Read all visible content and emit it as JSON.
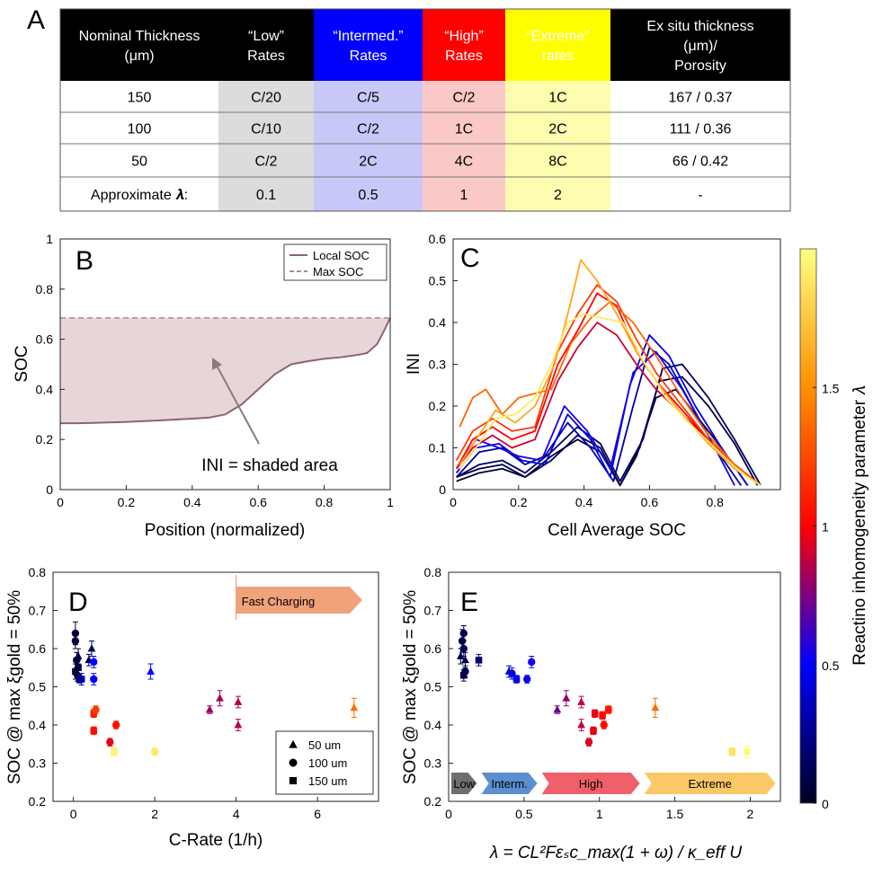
{
  "panel_A": {
    "letter": "A",
    "columns": [
      {
        "lines": [
          "Nominal Thickness",
          "(μm)"
        ],
        "bg": "#000000",
        "fg": "#ffffff",
        "cell_bg": "#ffffff"
      },
      {
        "lines": [
          "“Low”",
          "Rates"
        ],
        "bg": "#000000",
        "fg": "#ffffff",
        "cell_bg": "#dcdcdc"
      },
      {
        "lines": [
          "“Intermed.”",
          "Rates"
        ],
        "bg": "#0000ff",
        "fg": "#ffffff",
        "cell_bg": "#c8c8f8"
      },
      {
        "lines": [
          "“High”",
          "Rates"
        ],
        "bg": "#ff0000",
        "fg": "#ffffff",
        "cell_bg": "#fbc8c8"
      },
      {
        "lines": [
          "“Extreme”",
          "rates"
        ],
        "bg": "#ffff00",
        "fg": "#000000",
        "cell_bg": "#fdfdb0"
      },
      {
        "lines": [
          "Ex situ thickness",
          "(μm)/",
          "Porosity"
        ],
        "bg": "#000000",
        "fg": "#ffffff",
        "cell_bg": "#ffffff"
      }
    ],
    "rows": [
      [
        "150",
        "C/20",
        "C/5",
        "C/2",
        "1C",
        "167   /  0.37"
      ],
      [
        "100",
        "C/10",
        "C/2",
        "1C",
        "2C",
        "111   /  0.36"
      ],
      [
        "50",
        "C/2",
        "2C",
        "4C",
        "8C",
        "66    /  0.42"
      ],
      [
        "Approximate 𝝀:",
        "0.1",
        "0.5",
        "1",
        "2",
        "-"
      ]
    ]
  },
  "chart_data": [
    {
      "panel": "B",
      "type": "area",
      "xlabel": "Position (normalized)",
      "ylabel": "SOC",
      "xlim": [
        0,
        1
      ],
      "ylim": [
        0,
        1
      ],
      "xticks": [
        "0",
        "0.2",
        "0.4",
        "0.6",
        "0.8",
        "1"
      ],
      "yticks": [
        "0",
        "0.2",
        "0.4",
        "0.6",
        "0.8",
        "1"
      ],
      "series": [
        {
          "name": "Local SOC",
          "color": "#8c6470",
          "x": [
            0,
            0.05,
            0.1,
            0.2,
            0.3,
            0.4,
            0.45,
            0.5,
            0.55,
            0.6,
            0.65,
            0.7,
            0.75,
            0.8,
            0.85,
            0.9,
            0.93,
            0.96,
            0.98,
            1.0
          ],
          "y": [
            0.265,
            0.265,
            0.266,
            0.27,
            0.276,
            0.283,
            0.287,
            0.3,
            0.34,
            0.4,
            0.46,
            0.5,
            0.512,
            0.522,
            0.528,
            0.537,
            0.545,
            0.58,
            0.63,
            0.685
          ]
        },
        {
          "name": "Max SOC",
          "color": "#b08a94",
          "dashed": true,
          "y_const": 0.685
        }
      ],
      "legend": "top-right",
      "annotation": "INI = shaded area"
    },
    {
      "panel": "C",
      "type": "line",
      "xlabel": "Cell Average SOC",
      "ylabel": "INI",
      "xlim": [
        0,
        1
      ],
      "ylim": [
        0,
        0.6
      ],
      "xticks": [
        "0",
        "0.2",
        "0.4",
        "0.6",
        "0.8"
      ],
      "yticks": [
        "0",
        "0.1",
        "0.2",
        "0.3",
        "0.4",
        "0.5",
        "0.6"
      ],
      "colorbar": {
        "label": "Reactino inhomogeneity parameter 𝜆",
        "range": [
          0,
          2
        ],
        "ticks": [
          "0",
          "0.5",
          "1",
          "1.5"
        ],
        "stops": [
          "#000020",
          "#0000ff",
          "#ff0000",
          "#ff9000",
          "#ffff80"
        ]
      },
      "series": [
        {
          "lambda": 0.05,
          "x": [
            0.01,
            0.08,
            0.15,
            0.22,
            0.3,
            0.38,
            0.45,
            0.51,
            0.56,
            0.62,
            0.68,
            0.75,
            0.82,
            0.9
          ],
          "y": [
            0.02,
            0.04,
            0.05,
            0.03,
            0.08,
            0.12,
            0.09,
            0.01,
            0.08,
            0.22,
            0.24,
            0.17,
            0.1,
            0.01
          ]
        },
        {
          "lambda": 0.1,
          "x": [
            0.01,
            0.08,
            0.15,
            0.22,
            0.3,
            0.38,
            0.45,
            0.51,
            0.57,
            0.63,
            0.7,
            0.78,
            0.86,
            0.93
          ],
          "y": [
            0.03,
            0.05,
            0.06,
            0.03,
            0.07,
            0.13,
            0.1,
            0.01,
            0.1,
            0.26,
            0.27,
            0.2,
            0.11,
            0.01
          ]
        },
        {
          "lambda": 0.15,
          "x": [
            0.01,
            0.08,
            0.15,
            0.22,
            0.3,
            0.38,
            0.45,
            0.51,
            0.58,
            0.64,
            0.7,
            0.78,
            0.86,
            0.94
          ],
          "y": [
            0.03,
            0.06,
            0.07,
            0.04,
            0.09,
            0.15,
            0.11,
            0.02,
            0.12,
            0.29,
            0.3,
            0.22,
            0.12,
            0.01
          ]
        },
        {
          "lambda": 0.3,
          "x": [
            0.01,
            0.08,
            0.15,
            0.22,
            0.28,
            0.35,
            0.42,
            0.49,
            0.55,
            0.6,
            0.66,
            0.73,
            0.8,
            0.88
          ],
          "y": [
            0.03,
            0.09,
            0.1,
            0.06,
            0.08,
            0.16,
            0.1,
            0.02,
            0.2,
            0.34,
            0.3,
            0.2,
            0.1,
            0.01
          ]
        },
        {
          "lambda": 0.45,
          "x": [
            0.01,
            0.07,
            0.14,
            0.21,
            0.28,
            0.35,
            0.42,
            0.48,
            0.54,
            0.6,
            0.66,
            0.74,
            0.82,
            0.9
          ],
          "y": [
            0.04,
            0.1,
            0.11,
            0.07,
            0.06,
            0.18,
            0.12,
            0.03,
            0.25,
            0.37,
            0.32,
            0.2,
            0.1,
            0.01
          ]
        },
        {
          "lambda": 0.55,
          "x": [
            0.01,
            0.07,
            0.14,
            0.2,
            0.27,
            0.34,
            0.41,
            0.48,
            0.55,
            0.62,
            0.7,
            0.78,
            0.86
          ],
          "y": [
            0.05,
            0.12,
            0.1,
            0.08,
            0.07,
            0.2,
            0.14,
            0.05,
            0.28,
            0.33,
            0.24,
            0.13,
            0.01
          ]
        },
        {
          "lambda": 0.9,
          "x": [
            0.01,
            0.06,
            0.12,
            0.18,
            0.25,
            0.32,
            0.38,
            0.44,
            0.5,
            0.56,
            0.62,
            0.7,
            0.78,
            0.86,
            0.94
          ],
          "y": [
            0.05,
            0.1,
            0.13,
            0.1,
            0.12,
            0.26,
            0.34,
            0.4,
            0.37,
            0.3,
            0.24,
            0.18,
            0.12,
            0.06,
            0.01
          ]
        },
        {
          "lambda": 1.0,
          "x": [
            0.01,
            0.06,
            0.12,
            0.18,
            0.25,
            0.32,
            0.38,
            0.44,
            0.5,
            0.56,
            0.62,
            0.7,
            0.78,
            0.86,
            0.94
          ],
          "y": [
            0.05,
            0.12,
            0.15,
            0.12,
            0.14,
            0.3,
            0.38,
            0.47,
            0.44,
            0.33,
            0.26,
            0.19,
            0.12,
            0.06,
            0.01
          ]
        },
        {
          "lambda": 1.2,
          "x": [
            0.01,
            0.06,
            0.12,
            0.18,
            0.25,
            0.32,
            0.38,
            0.44,
            0.5,
            0.56,
            0.62,
            0.7,
            0.78,
            0.86,
            0.94
          ],
          "y": [
            0.07,
            0.14,
            0.17,
            0.14,
            0.15,
            0.33,
            0.42,
            0.49,
            0.45,
            0.36,
            0.28,
            0.2,
            0.12,
            0.06,
            0.01
          ]
        },
        {
          "lambda": 1.35,
          "x": [
            0.02,
            0.06,
            0.1,
            0.15,
            0.2,
            0.25,
            0.3,
            0.36,
            0.42,
            0.48,
            0.55,
            0.62,
            0.7,
            0.78,
            0.86,
            0.94
          ],
          "y": [
            0.15,
            0.22,
            0.24,
            0.18,
            0.22,
            0.23,
            0.24,
            0.35,
            0.41,
            0.45,
            0.4,
            0.32,
            0.22,
            0.13,
            0.06,
            0.01
          ]
        },
        {
          "lambda": 1.6,
          "x": [
            0.02,
            0.07,
            0.13,
            0.19,
            0.25,
            0.31,
            0.36,
            0.39,
            0.44,
            0.5,
            0.56,
            0.63,
            0.7,
            0.78,
            0.86,
            0.94
          ],
          "y": [
            0.06,
            0.12,
            0.19,
            0.16,
            0.2,
            0.3,
            0.45,
            0.55,
            0.5,
            0.42,
            0.33,
            0.25,
            0.18,
            0.11,
            0.05,
            0.01
          ]
        },
        {
          "lambda": 1.9,
          "x": [
            0.02,
            0.07,
            0.13,
            0.19,
            0.25,
            0.3,
            0.35,
            0.4,
            0.46,
            0.52,
            0.58,
            0.65,
            0.72,
            0.8,
            0.88,
            0.94
          ],
          "y": [
            0.05,
            0.1,
            0.17,
            0.18,
            0.22,
            0.3,
            0.4,
            0.42,
            0.41,
            0.4,
            0.31,
            0.22,
            0.16,
            0.1,
            0.04,
            0.01
          ]
        }
      ]
    },
    {
      "panel": "D",
      "type": "scatter",
      "xlabel": "C-Rate (1/h)",
      "ylabel": "SOC @ max ξgold = 50%",
      "xlim": [
        -0.5,
        7.5
      ],
      "ylim": [
        0.2,
        0.8
      ],
      "xticks": [
        "0",
        "2",
        "4",
        "6"
      ],
      "yticks": [
        "0.2",
        "0.3",
        "0.4",
        "0.5",
        "0.6",
        "0.7",
        "0.8"
      ],
      "annotation": "Fast Charging",
      "legend": "bottom-right",
      "legend_entries": [
        "50 um",
        "100 um",
        "150 um"
      ],
      "points": [
        {
          "x": 0.05,
          "y": 0.64,
          "e": 0.03,
          "m": "o",
          "lambda": 0.05
        },
        {
          "x": 0.05,
          "y": 0.62,
          "e": 0.02,
          "m": "o",
          "lambda": 0.05
        },
        {
          "x": 0.08,
          "y": 0.57,
          "e": 0.02,
          "m": "o",
          "lambda": 0.05
        },
        {
          "x": 0.1,
          "y": 0.53,
          "e": 0.015,
          "m": "o",
          "lambda": 0.08
        },
        {
          "x": 0.12,
          "y": 0.55,
          "e": 0.02,
          "m": "s",
          "lambda": 0.08
        },
        {
          "x": 0.05,
          "y": 0.54,
          "e": 0.02,
          "m": "s",
          "lambda": 0.05
        },
        {
          "x": 0.15,
          "y": 0.52,
          "e": 0.01,
          "m": "s",
          "lambda": 0.1
        },
        {
          "x": 0.12,
          "y": 0.58,
          "e": 0.02,
          "m": "^",
          "lambda": 0.08
        },
        {
          "x": 0.38,
          "y": 0.57,
          "e": 0.015,
          "m": "^",
          "lambda": 0.1
        },
        {
          "x": 0.45,
          "y": 0.6,
          "e": 0.02,
          "m": "^",
          "lambda": 0.15
        },
        {
          "x": 0.2,
          "y": 0.52,
          "e": 0.015,
          "m": "s",
          "lambda": 0.3
        },
        {
          "x": 0.5,
          "y": 0.52,
          "e": 0.015,
          "m": "o",
          "lambda": 0.5
        },
        {
          "x": 0.5,
          "y": 0.565,
          "e": 0.015,
          "m": "o",
          "lambda": 0.5
        },
        {
          "x": 1.9,
          "y": 0.54,
          "e": 0.02,
          "m": "^",
          "lambda": 0.5
        },
        {
          "x": 0.5,
          "y": 0.385,
          "e": 0.01,
          "m": "s",
          "lambda": 1.05
        },
        {
          "x": 0.5,
          "y": 0.43,
          "e": 0.01,
          "m": "s",
          "lambda": 1.1
        },
        {
          "x": 0.55,
          "y": 0.44,
          "e": 0.01,
          "m": "o",
          "lambda": 1.2
        },
        {
          "x": 0.9,
          "y": 0.355,
          "e": 0.01,
          "m": "o",
          "lambda": 0.95
        },
        {
          "x": 1.05,
          "y": 0.4,
          "e": 0.01,
          "m": "o",
          "lambda": 1.05
        },
        {
          "x": 1.0,
          "y": 0.33,
          "e": 0.01,
          "m": "s",
          "lambda": 1.95
        },
        {
          "x": 2.0,
          "y": 0.33,
          "e": 0.01,
          "m": "o",
          "lambda": 1.9
        },
        {
          "x": 3.35,
          "y": 0.44,
          "e": 0.01,
          "m": "^",
          "lambda": 0.8
        },
        {
          "x": 3.6,
          "y": 0.47,
          "e": 0.02,
          "m": "^",
          "lambda": 0.82
        },
        {
          "x": 4.05,
          "y": 0.46,
          "e": 0.015,
          "m": "^",
          "lambda": 0.85
        },
        {
          "x": 4.05,
          "y": 0.4,
          "e": 0.015,
          "m": "^",
          "lambda": 0.85
        },
        {
          "x": 6.9,
          "y": 0.445,
          "e": 0.025,
          "m": "^",
          "lambda": 1.4
        }
      ]
    },
    {
      "panel": "E",
      "type": "scatter",
      "xlabel": "λ = CL²Fεₛc_max(1 + ω) / κ_eff U",
      "ylabel": "SOC @ max ξgold = 50%",
      "xlim": [
        0,
        2.2
      ],
      "ylim": [
        0.2,
        0.8
      ],
      "xticks": [
        "0",
        "0.5",
        "1",
        "1.5",
        "2"
      ],
      "yticks": [
        "0.2",
        "0.3",
        "0.4",
        "0.5",
        "0.6",
        "0.7",
        "0.8"
      ],
      "bands": [
        {
          "label": "Low",
          "from": 0,
          "to": 0.2,
          "color": "#6e6e6e"
        },
        {
          "label": "Interm.",
          "from": 0.2,
          "to": 0.6,
          "color": "#5b8fd0"
        },
        {
          "label": "High",
          "from": 0.6,
          "to": 1.28,
          "color": "#f0606a"
        },
        {
          "label": "Extreme",
          "from": 1.28,
          "to": 2.18,
          "color": "#fbc868"
        }
      ],
      "points": [
        {
          "x": 0.08,
          "y": 0.58,
          "e": 0.02,
          "m": "^",
          "lambda": 0.08
        },
        {
          "x": 0.09,
          "y": 0.62,
          "e": 0.03,
          "m": "o",
          "lambda": 0.09
        },
        {
          "x": 0.1,
          "y": 0.64,
          "e": 0.02,
          "m": "o",
          "lambda": 0.1
        },
        {
          "x": 0.1,
          "y": 0.6,
          "e": 0.02,
          "m": "o",
          "lambda": 0.1
        },
        {
          "x": 0.1,
          "y": 0.53,
          "e": 0.015,
          "m": "s",
          "lambda": 0.1
        },
        {
          "x": 0.11,
          "y": 0.54,
          "e": 0.015,
          "m": "o",
          "lambda": 0.11
        },
        {
          "x": 0.11,
          "y": 0.57,
          "e": 0.02,
          "m": "^",
          "lambda": 0.11
        },
        {
          "x": 0.2,
          "y": 0.57,
          "e": 0.015,
          "m": "s",
          "lambda": 0.2
        },
        {
          "x": 0.4,
          "y": 0.54,
          "e": 0.015,
          "m": "^",
          "lambda": 0.4
        },
        {
          "x": 0.42,
          "y": 0.535,
          "e": 0.015,
          "m": "o",
          "lambda": 0.42
        },
        {
          "x": 0.45,
          "y": 0.52,
          "e": 0.01,
          "m": "s",
          "lambda": 0.45
        },
        {
          "x": 0.52,
          "y": 0.52,
          "e": 0.01,
          "m": "o",
          "lambda": 0.52
        },
        {
          "x": 0.55,
          "y": 0.565,
          "e": 0.015,
          "m": "o",
          "lambda": 0.55
        },
        {
          "x": 0.72,
          "y": 0.44,
          "e": 0.01,
          "m": "^",
          "lambda": 0.72
        },
        {
          "x": 0.78,
          "y": 0.47,
          "e": 0.02,
          "m": "^",
          "lambda": 0.78
        },
        {
          "x": 0.88,
          "y": 0.4,
          "e": 0.015,
          "m": "^",
          "lambda": 0.88
        },
        {
          "x": 0.88,
          "y": 0.46,
          "e": 0.015,
          "m": "^",
          "lambda": 0.88
        },
        {
          "x": 0.93,
          "y": 0.355,
          "e": 0.01,
          "m": "o",
          "lambda": 0.93
        },
        {
          "x": 0.96,
          "y": 0.385,
          "e": 0.01,
          "m": "s",
          "lambda": 0.96
        },
        {
          "x": 0.97,
          "y": 0.43,
          "e": 0.01,
          "m": "s",
          "lambda": 0.97
        },
        {
          "x": 1.02,
          "y": 0.425,
          "e": 0.01,
          "m": "s",
          "lambda": 1.02
        },
        {
          "x": 1.03,
          "y": 0.4,
          "e": 0.01,
          "m": "o",
          "lambda": 1.03
        },
        {
          "x": 1.06,
          "y": 0.44,
          "e": 0.01,
          "m": "s",
          "lambda": 1.06
        },
        {
          "x": 1.37,
          "y": 0.445,
          "e": 0.025,
          "m": "^",
          "lambda": 1.37
        },
        {
          "x": 1.88,
          "y": 0.33,
          "e": 0.01,
          "m": "s",
          "lambda": 1.88
        },
        {
          "x": 1.98,
          "y": 0.33,
          "e": 0.015,
          "m": "o",
          "lambda": 1.98
        }
      ]
    }
  ]
}
